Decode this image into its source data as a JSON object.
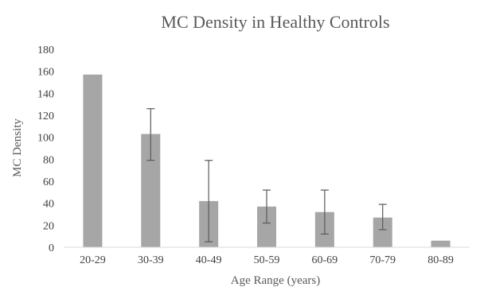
{
  "chart_data": {
    "type": "bar",
    "title": "MC Density in Healthy Controls",
    "xlabel": "Age Range (years)",
    "ylabel": "MC Density",
    "categories": [
      "20-29",
      "30-39",
      "40-49",
      "50-59",
      "60-69",
      "70-79",
      "80-89"
    ],
    "values": [
      157,
      103,
      42,
      37,
      32,
      27,
      6
    ],
    "error_low": [
      null,
      79,
      5,
      22,
      12,
      16,
      null
    ],
    "error_high": [
      null,
      126,
      79,
      52,
      52,
      39,
      null
    ],
    "ylim": [
      0,
      180
    ],
    "yticks": [
      0,
      20,
      40,
      60,
      80,
      100,
      120,
      140,
      160,
      180
    ],
    "grid": false,
    "colors": {
      "bar": "#a6a6a6",
      "error_bar": "#595959"
    }
  }
}
